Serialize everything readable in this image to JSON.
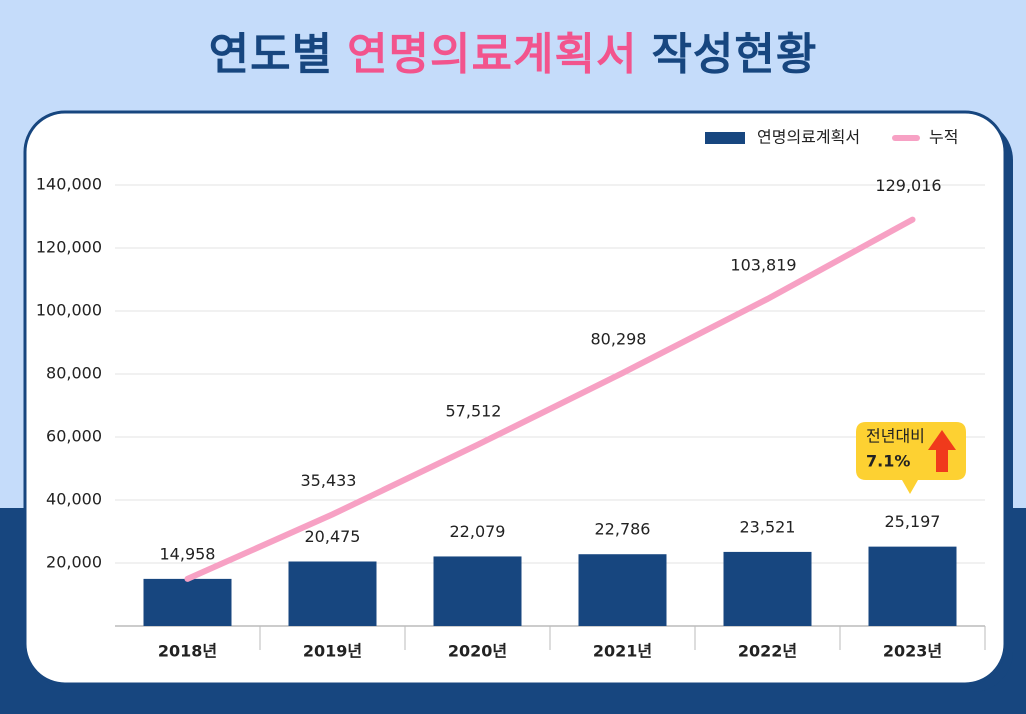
{
  "chart_data": {
    "type": "bar-line",
    "title": [
      "연도별",
      "연명의료계획서",
      "작성현황"
    ],
    "categories": [
      "2018년",
      "2019년",
      "2020년",
      "2021년",
      "2022년",
      "2023년"
    ],
    "series": [
      {
        "name": "연명의료계획서",
        "type": "bar",
        "color": "#17467f",
        "values": [
          14958,
          20475,
          22079,
          22786,
          23521,
          25197
        ],
        "value_labels": [
          "14,958",
          "20,475",
          "22,079",
          "22,786",
          "23,521",
          "25,197"
        ]
      },
      {
        "name": "누적",
        "type": "line",
        "color": "#f7a1c4",
        "values": [
          14958,
          35433,
          57512,
          80298,
          103819,
          129016
        ],
        "value_labels": [
          null,
          "35,433",
          "57,512",
          "80,298",
          "103,819",
          "129,016"
        ]
      }
    ],
    "ylim": [
      0,
      140000
    ],
    "yticks": [
      {
        "value": 20000,
        "label": "20,000"
      },
      {
        "value": 40000,
        "label": "40,000"
      },
      {
        "value": 60000,
        "label": "60,000"
      },
      {
        "value": 80000,
        "label": "80,000"
      },
      {
        "value": 100000,
        "label": "100,000"
      },
      {
        "value": 120000,
        "label": "120,000"
      },
      {
        "value": 140000,
        "label": "140,000"
      }
    ],
    "grid": true,
    "legend": "top-right",
    "annotation": {
      "text": "전년대비",
      "change": "7.1%"
    }
  }
}
